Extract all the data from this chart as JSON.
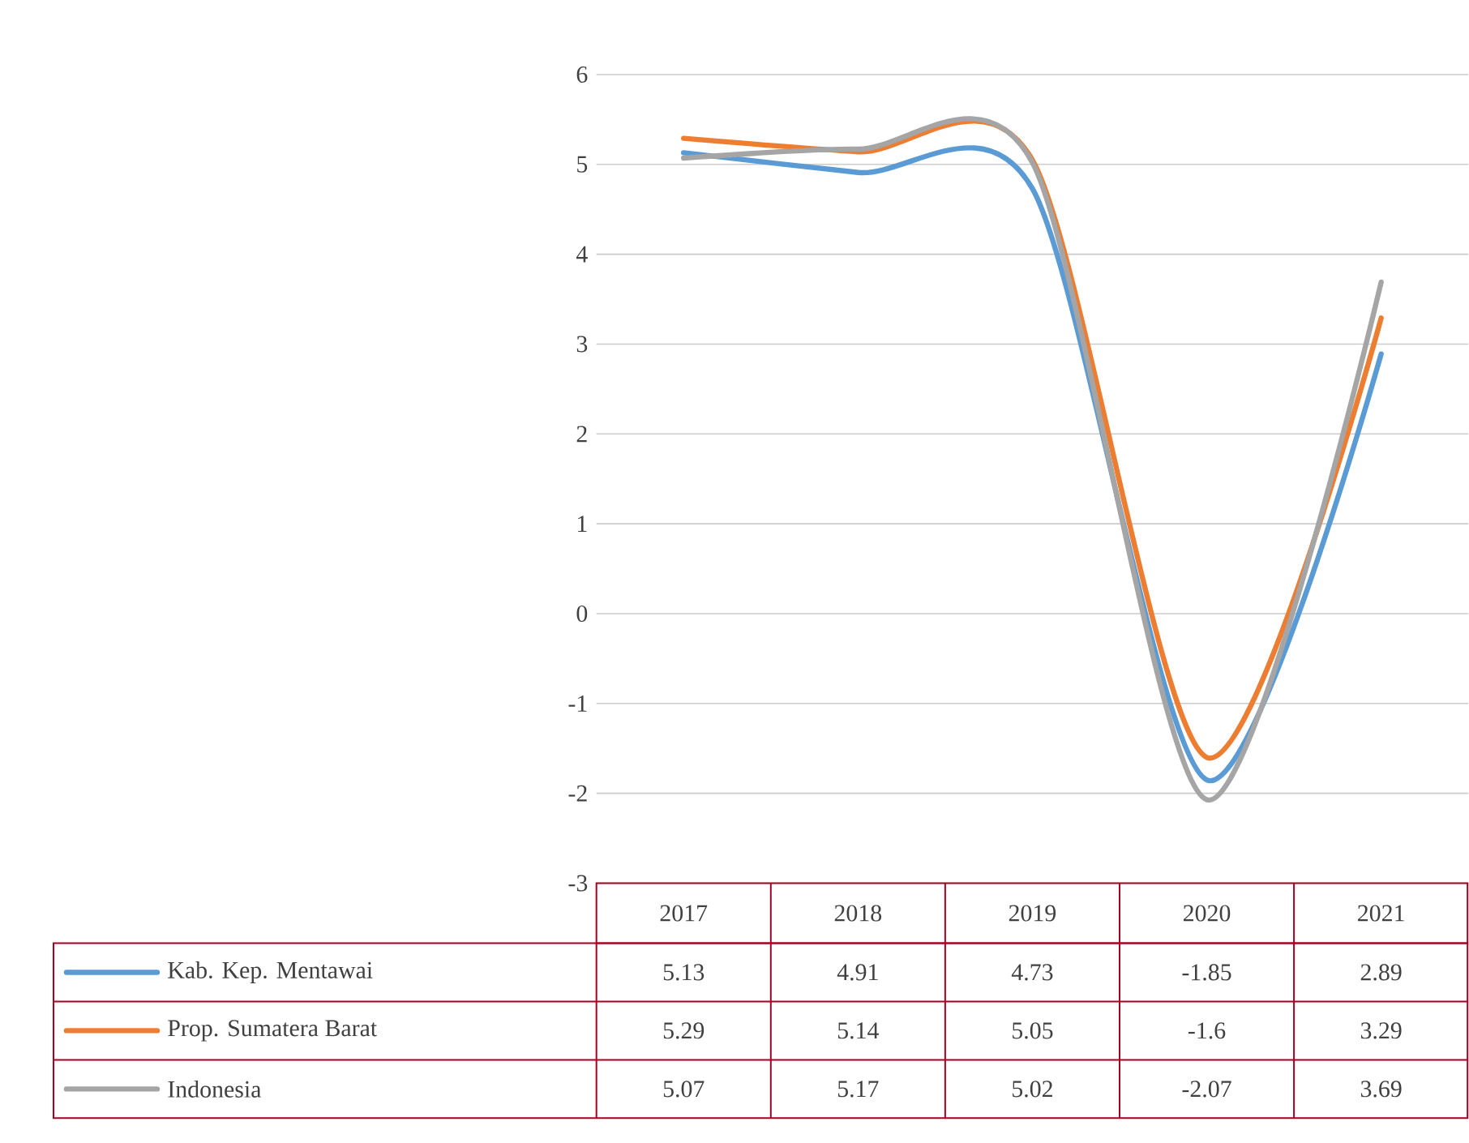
{
  "chart_data": {
    "type": "line",
    "categories": [
      "2017",
      "2018",
      "2019",
      "2020",
      "2021"
    ],
    "series": [
      {
        "name": "Kab. Kep. Mentawai",
        "color": "#5b9bd5",
        "values": [
          5.13,
          4.91,
          4.73,
          -1.85,
          2.89
        ],
        "value_labels": [
          "5.13",
          "4.91",
          "4.73",
          "-1.85",
          "2.89"
        ]
      },
      {
        "name": "Prop. Sumatera Barat",
        "color": "#ed7d31",
        "values": [
          5.29,
          5.14,
          5.05,
          -1.6,
          3.29
        ],
        "value_labels": [
          "5.29",
          "5.14",
          "5.05",
          "-1.6",
          "3.29"
        ]
      },
      {
        "name": "Indonesia",
        "color": "#a5a5a5",
        "values": [
          5.07,
          5.17,
          5.02,
          -2.07,
          3.69
        ],
        "value_labels": [
          "5.07",
          "5.17",
          "5.02",
          "-2.07",
          "3.69"
        ]
      }
    ],
    "ylim": [
      -3,
      6
    ],
    "yticks": [
      -3,
      -2,
      -1,
      0,
      1,
      2,
      3,
      4,
      5,
      6
    ],
    "grid": "y",
    "legend": "bottom"
  }
}
